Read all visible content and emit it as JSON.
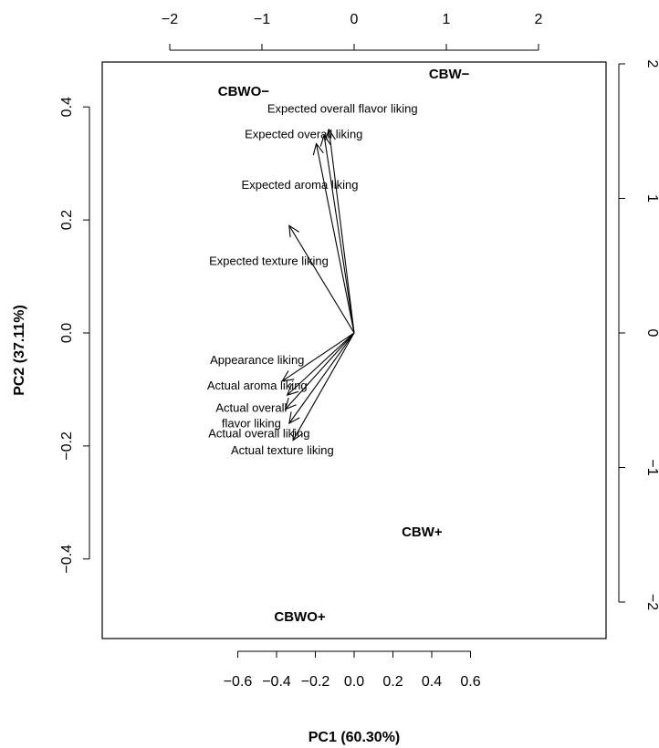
{
  "chart_data": {
    "type": "scatter",
    "subtype": "biplot",
    "xlabel": "PC1 (60.30%)",
    "ylabel": "PC2 (37.11%)",
    "xlim": [
      -0.65,
      0.65
    ],
    "ylim": [
      -0.54,
      0.48
    ],
    "x_ticks": [
      "−0.6",
      "−0.4",
      "−0.2",
      "0.0",
      "0.2",
      "0.4",
      "0.6"
    ],
    "y_ticks": [
      "−0.4",
      "−0.2",
      "0.0",
      "0.2",
      "0.4"
    ],
    "top_ticks": [
      "−2",
      "−1",
      "0",
      "1",
      "2"
    ],
    "right_ticks": [
      "−2",
      "−1",
      "0",
      "1",
      "2"
    ],
    "grid": false,
    "arrow_color": "#000000",
    "observations": [
      {
        "label": "CBWO−",
        "x": -0.57,
        "y": 0.42
      },
      {
        "label": "CBW−",
        "x": 0.49,
        "y": 0.45
      },
      {
        "label": "CBW+",
        "x": 0.35,
        "y": -0.36
      },
      {
        "label": "CBWO+",
        "x": -0.28,
        "y": -0.51
      }
    ],
    "variables": [
      {
        "label": "Expected overall flavor liking",
        "x": -0.13,
        "y": 0.36
      },
      {
        "label": "Expected overall liking",
        "x": -0.195,
        "y": 0.335
      },
      {
        "label": "Expected aroma liking",
        "x": -0.155,
        "y": 0.35
      },
      {
        "label": "Expected texture liking",
        "x": -0.335,
        "y": 0.19
      },
      {
        "label": "Appearance liking",
        "x": -0.37,
        "y": -0.085
      },
      {
        "label": "Actual aroma liking",
        "x": -0.345,
        "y": -0.11
      },
      {
        "label": "Actual overall flavor liking",
        "x": -0.355,
        "y": -0.135
      },
      {
        "label": "Actual overall liking",
        "x": -0.335,
        "y": -0.16
      },
      {
        "label": "Actual texture liking",
        "x": -0.315,
        "y": -0.19
      }
    ],
    "variable_labels": [
      {
        "lines": [
          "Expected overall flavor liking"
        ],
        "x": -0.06,
        "y": 0.39
      },
      {
        "lines": [
          "Expected overall liking"
        ],
        "x": -0.26,
        "y": 0.345
      },
      {
        "lines": [
          "Expected aroma liking"
        ],
        "x": -0.28,
        "y": 0.255
      },
      {
        "lines": [
          "Expected texture liking"
        ],
        "x": -0.44,
        "y": 0.12
      },
      {
        "lines": [
          "Appearance liking"
        ],
        "x": -0.5,
        "y": -0.055
      },
      {
        "lines": [
          "Actual aroma liking"
        ],
        "x": -0.5,
        "y": -0.1
      },
      {
        "lines": [
          "Actual overall",
          "flavor liking"
        ],
        "x": -0.53,
        "y": -0.14
      },
      {
        "lines": [
          "Actual overall liking"
        ],
        "x": -0.49,
        "y": -0.185
      },
      {
        "lines": [
          "Actual texture liking"
        ],
        "x": -0.37,
        "y": -0.215
      }
    ]
  }
}
